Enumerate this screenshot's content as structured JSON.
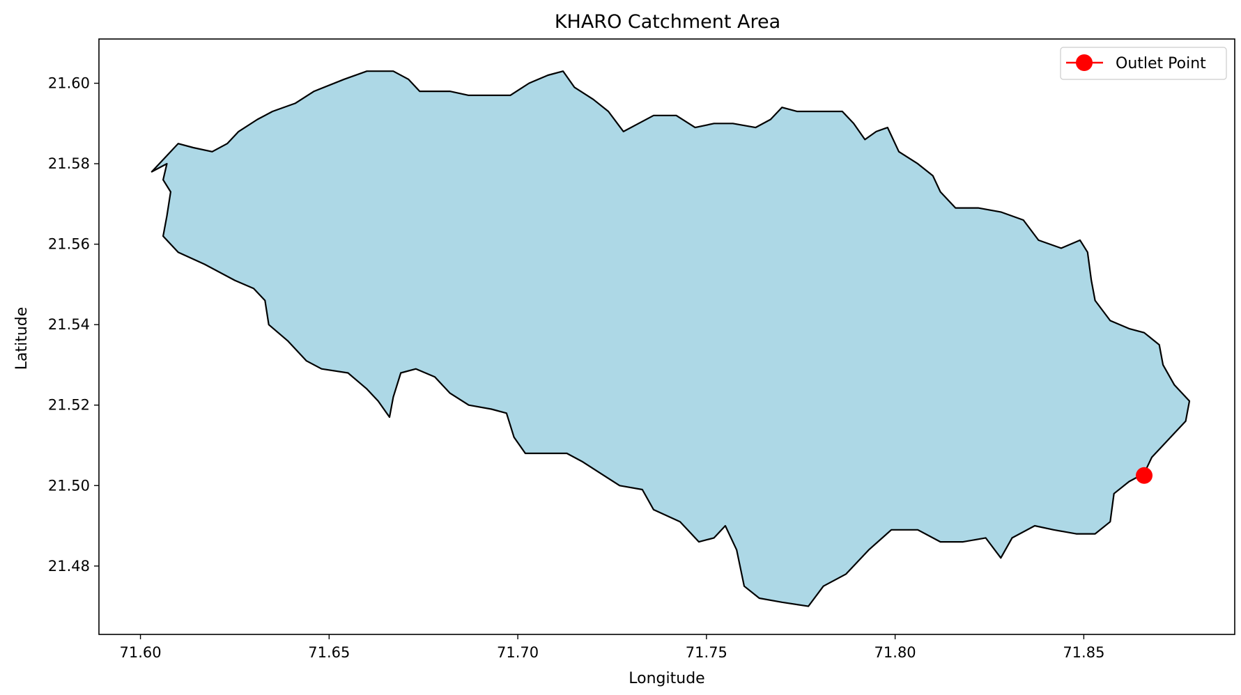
{
  "chart_data": {
    "type": "map",
    "title": "KHARO Catchment Area",
    "xlabel": "Longitude",
    "ylabel": "Latitude",
    "xlim": [
      71.589,
      71.89
    ],
    "ylim": [
      21.463,
      21.611
    ],
    "xticks": [
      "71.60",
      "71.65",
      "71.70",
      "71.75",
      "71.80",
      "71.85"
    ],
    "yticks": [
      "21.48",
      "21.50",
      "21.52",
      "21.54",
      "21.56",
      "21.58",
      "21.60"
    ],
    "grid": false,
    "legend": {
      "placement": "top-right",
      "entries": [
        "Outlet Point"
      ]
    },
    "catchment": {
      "fill_color": "#add8e6",
      "edge_color": "#000000",
      "boundary": [
        [
          71.603,
          21.578
        ],
        [
          71.607,
          21.58
        ],
        [
          71.606,
          21.576
        ],
        [
          71.608,
          21.573
        ],
        [
          71.607,
          21.567
        ],
        [
          71.606,
          21.562
        ],
        [
          71.61,
          21.558
        ],
        [
          71.617,
          21.555
        ],
        [
          71.625,
          21.551
        ],
        [
          71.63,
          21.549
        ],
        [
          71.633,
          21.546
        ],
        [
          71.634,
          21.54
        ],
        [
          71.639,
          21.536
        ],
        [
          71.644,
          21.531
        ],
        [
          71.648,
          21.529
        ],
        [
          71.655,
          21.528
        ],
        [
          71.66,
          21.524
        ],
        [
          71.663,
          21.521
        ],
        [
          71.666,
          21.517
        ],
        [
          71.667,
          21.522
        ],
        [
          71.669,
          21.528
        ],
        [
          71.673,
          21.529
        ],
        [
          71.678,
          21.527
        ],
        [
          71.682,
          21.523
        ],
        [
          71.687,
          21.52
        ],
        [
          71.693,
          21.519
        ],
        [
          71.697,
          21.518
        ],
        [
          71.699,
          21.512
        ],
        [
          71.702,
          21.508
        ],
        [
          71.708,
          21.508
        ],
        [
          71.713,
          21.508
        ],
        [
          71.717,
          21.506
        ],
        [
          71.722,
          21.503
        ],
        [
          71.727,
          21.5
        ],
        [
          71.733,
          21.499
        ],
        [
          71.736,
          21.494
        ],
        [
          71.743,
          21.491
        ],
        [
          71.748,
          21.486
        ],
        [
          71.752,
          21.487
        ],
        [
          71.755,
          21.49
        ],
        [
          71.758,
          21.484
        ],
        [
          71.76,
          21.475
        ],
        [
          71.764,
          21.472
        ],
        [
          71.77,
          21.471
        ],
        [
          71.777,
          21.47
        ],
        [
          71.781,
          21.475
        ],
        [
          71.787,
          21.478
        ],
        [
          71.793,
          21.484
        ],
        [
          71.799,
          21.489
        ],
        [
          71.806,
          21.489
        ],
        [
          71.812,
          21.486
        ],
        [
          71.818,
          21.486
        ],
        [
          71.824,
          21.487
        ],
        [
          71.828,
          21.482
        ],
        [
          71.831,
          21.487
        ],
        [
          71.837,
          21.49
        ],
        [
          71.842,
          21.489
        ],
        [
          71.848,
          21.488
        ],
        [
          71.853,
          21.488
        ],
        [
          71.857,
          21.491
        ],
        [
          71.858,
          21.498
        ],
        [
          71.862,
          21.501
        ],
        [
          71.866,
          21.503
        ],
        [
          71.868,
          21.507
        ],
        [
          71.873,
          21.512
        ],
        [
          71.877,
          21.516
        ],
        [
          71.878,
          21.521
        ],
        [
          71.874,
          21.525
        ],
        [
          71.871,
          21.53
        ],
        [
          71.87,
          21.535
        ],
        [
          71.866,
          21.538
        ],
        [
          71.862,
          21.539
        ],
        [
          71.857,
          21.541
        ],
        [
          71.853,
          21.546
        ],
        [
          71.852,
          21.551
        ],
        [
          71.851,
          21.558
        ],
        [
          71.849,
          21.561
        ],
        [
          71.844,
          21.559
        ],
        [
          71.838,
          21.561
        ],
        [
          71.834,
          21.566
        ],
        [
          71.828,
          21.568
        ],
        [
          71.822,
          21.569
        ],
        [
          71.816,
          21.569
        ],
        [
          71.812,
          21.573
        ],
        [
          71.81,
          21.577
        ],
        [
          71.806,
          21.58
        ],
        [
          71.801,
          21.583
        ],
        [
          71.798,
          21.589
        ],
        [
          71.795,
          21.588
        ],
        [
          71.792,
          21.586
        ],
        [
          71.789,
          21.59
        ],
        [
          71.786,
          21.593
        ],
        [
          71.78,
          21.593
        ],
        [
          71.774,
          21.593
        ],
        [
          71.77,
          21.594
        ],
        [
          71.767,
          21.591
        ],
        [
          71.763,
          21.589
        ],
        [
          71.757,
          21.59
        ],
        [
          71.752,
          21.59
        ],
        [
          71.747,
          21.589
        ],
        [
          71.742,
          21.592
        ],
        [
          71.736,
          21.592
        ],
        [
          71.732,
          21.59
        ],
        [
          71.728,
          21.588
        ],
        [
          71.724,
          21.593
        ],
        [
          71.72,
          21.596
        ],
        [
          71.715,
          21.599
        ],
        [
          71.712,
          21.603
        ],
        [
          71.708,
          21.602
        ],
        [
          71.703,
          21.6
        ],
        [
          71.698,
          21.597
        ],
        [
          71.692,
          21.597
        ],
        [
          71.687,
          21.597
        ],
        [
          71.682,
          21.598
        ],
        [
          71.678,
          21.598
        ],
        [
          71.674,
          21.598
        ],
        [
          71.671,
          21.601
        ],
        [
          71.667,
          21.603
        ],
        [
          71.66,
          21.603
        ],
        [
          71.654,
          21.601
        ],
        [
          71.646,
          21.598
        ],
        [
          71.641,
          21.595
        ],
        [
          71.635,
          21.593
        ],
        [
          71.631,
          21.591
        ],
        [
          71.626,
          21.588
        ],
        [
          71.623,
          21.585
        ],
        [
          71.619,
          21.583
        ],
        [
          71.614,
          21.584
        ],
        [
          71.61,
          21.585
        ],
        [
          71.607,
          21.582
        ],
        [
          71.603,
          21.578
        ]
      ]
    },
    "series": [
      {
        "name": "Outlet Point",
        "color": "#ff0000",
        "x": [
          71.866
        ],
        "y": [
          21.5025
        ]
      }
    ]
  }
}
